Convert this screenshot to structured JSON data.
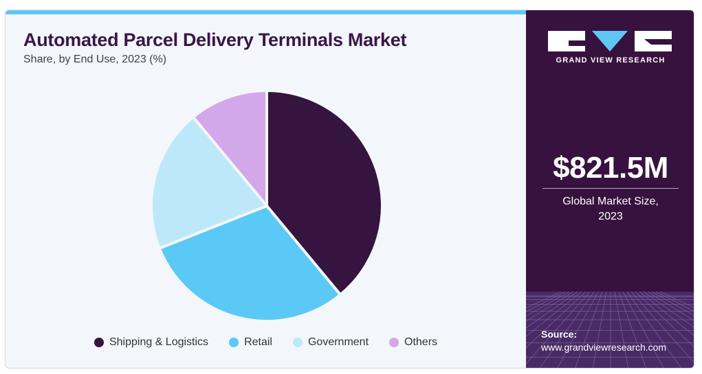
{
  "header": {
    "title": "Automated Parcel Delivery Terminals Market",
    "subtitle": "Share, by End Use, 2023 (%)"
  },
  "chart_data": {
    "type": "pie",
    "title": "Automated Parcel Delivery Terminals Market",
    "subtitle": "Share, by End Use, 2023 (%)",
    "legend_position": "bottom",
    "slices": [
      {
        "name": "Shipping & Logistics",
        "value": 39,
        "color": "#35143f"
      },
      {
        "name": "Retail",
        "value": 30,
        "color": "#5bc9f5"
      },
      {
        "name": "Government",
        "value": 20,
        "color": "#bde8f9"
      },
      {
        "name": "Others",
        "value": 11,
        "color": "#d3a8ea"
      }
    ]
  },
  "sidebar": {
    "brand": "GRAND VIEW RESEARCH",
    "market_size": "$821.5M",
    "market_label_line1": "Global Market Size,",
    "market_label_line2": "2023",
    "source_label": "Source:",
    "source_url": "www.grandviewresearch.com",
    "accent": "#37123f",
    "logo_accent": "#5ec8f2"
  }
}
